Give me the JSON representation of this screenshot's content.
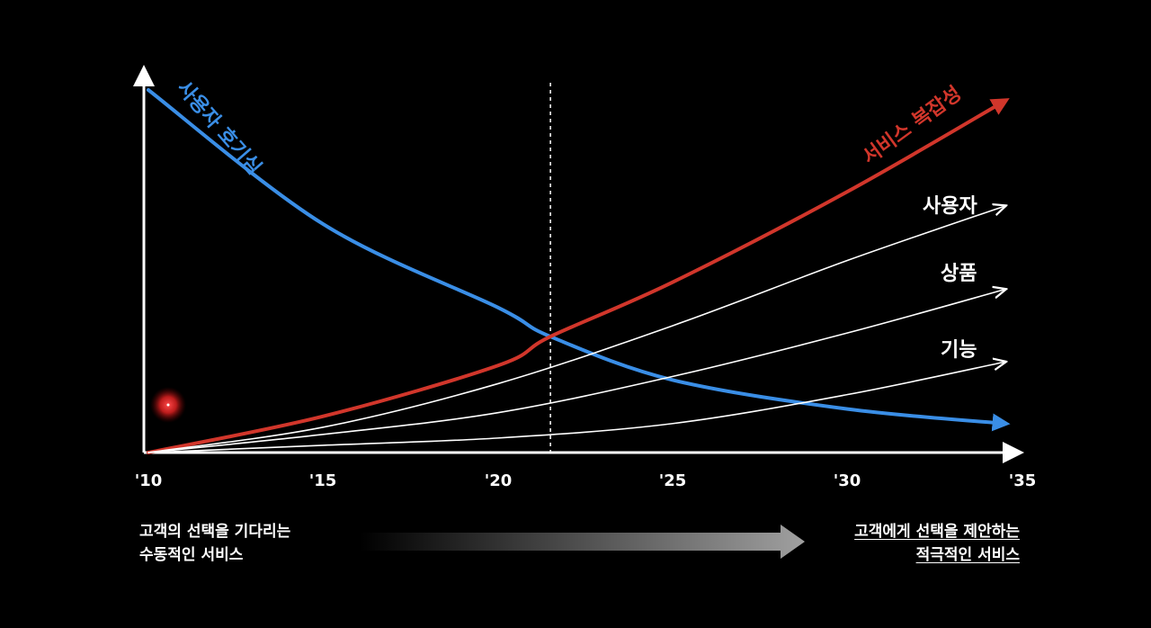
{
  "chart_data": {
    "type": "line",
    "x_ticks": [
      "'10",
      "'15",
      "'20",
      "'25",
      "'30",
      "'35"
    ],
    "xlim": [
      2010,
      2035
    ],
    "ylim": [
      0,
      1
    ],
    "marker_x": 2021.5,
    "series": [
      {
        "name": "사용자 호기심",
        "color": "#3a8ee6",
        "x": [
          2010,
          2015,
          2020,
          2021.5,
          2025,
          2030,
          2034.5
        ],
        "y": [
          1.0,
          0.63,
          0.4,
          0.32,
          0.2,
          0.12,
          0.08
        ]
      },
      {
        "name": "서비스 복잡성",
        "color": "#d1362b",
        "x": [
          2010,
          2015,
          2020,
          2021.5,
          2025,
          2030,
          2034.5
        ],
        "y": [
          0.0,
          0.1,
          0.24,
          0.32,
          0.47,
          0.72,
          0.97
        ]
      },
      {
        "name": "사용자",
        "color": "#ffffff",
        "x": [
          2010,
          2015,
          2020,
          2025,
          2030,
          2034.5
        ],
        "y": [
          0.0,
          0.07,
          0.19,
          0.35,
          0.53,
          0.68
        ]
      },
      {
        "name": "상품",
        "color": "#ffffff",
        "x": [
          2010,
          2015,
          2020,
          2025,
          2030,
          2034.5
        ],
        "y": [
          0.0,
          0.05,
          0.11,
          0.21,
          0.33,
          0.45
        ]
      },
      {
        "name": "기능",
        "color": "#ffffff",
        "x": [
          2010,
          2015,
          2020,
          2025,
          2030,
          2034.5
        ],
        "y": [
          0.0,
          0.02,
          0.04,
          0.08,
          0.16,
          0.25
        ]
      }
    ]
  },
  "bottom": {
    "left_line1": "고객의 선택을 기다리는",
    "left_line2": "수동적인 서비스",
    "right_line1": "고객에게 선택을 제안하는",
    "right_line2": "적극적인 서비스"
  }
}
